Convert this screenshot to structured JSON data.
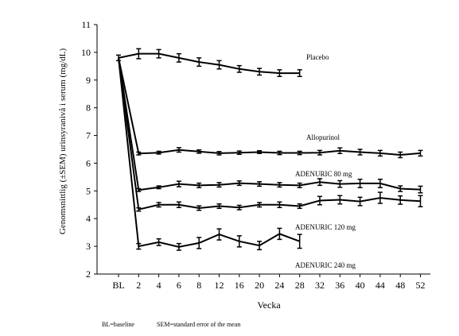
{
  "chart_data": {
    "type": "line",
    "xlabel": "Vecka",
    "ylabel": "Genomsnittlig (±SEM) urinsyranivå i serum (mg/dL)",
    "ylim": [
      2,
      11
    ],
    "yticks": [
      2,
      3,
      4,
      5,
      6,
      7,
      8,
      9,
      10,
      11
    ],
    "categories": [
      "BL",
      "2",
      "4",
      "6",
      "8",
      "12",
      "16",
      "20",
      "24",
      "28",
      "32",
      "36",
      "40",
      "44",
      "48",
      "52"
    ],
    "grid": false,
    "series": [
      {
        "name": "Placebo",
        "values": [
          9.8,
          9.95,
          9.95,
          9.8,
          9.65,
          9.55,
          9.4,
          9.3,
          9.25,
          9.25,
          null,
          null,
          null,
          null,
          null,
          null
        ],
        "sem": [
          0.1,
          0.18,
          0.15,
          0.15,
          0.15,
          0.15,
          0.12,
          0.12,
          0.12,
          0.12,
          null,
          null,
          null,
          null,
          null,
          null
        ]
      },
      {
        "name": "Allopurinol",
        "values": [
          9.8,
          6.35,
          6.38,
          6.48,
          6.42,
          6.36,
          6.38,
          6.4,
          6.37,
          6.37,
          6.38,
          6.45,
          6.4,
          6.36,
          6.3,
          6.36
        ],
        "sem": [
          0.1,
          0.05,
          0.05,
          0.08,
          0.06,
          0.06,
          0.06,
          0.05,
          0.06,
          0.06,
          0.08,
          0.1,
          0.1,
          0.1,
          0.1,
          0.1
        ]
      },
      {
        "name": "ADENURIC 80 mg",
        "values": [
          9.8,
          5.03,
          5.13,
          5.25,
          5.2,
          5.22,
          5.28,
          5.25,
          5.22,
          5.2,
          5.32,
          5.25,
          5.27,
          5.27,
          5.08,
          5.05
        ],
        "sem": [
          0.1,
          0.05,
          0.05,
          0.1,
          0.08,
          0.08,
          0.08,
          0.08,
          0.08,
          0.08,
          0.12,
          0.12,
          0.15,
          0.15,
          0.1,
          0.12
        ]
      },
      {
        "name": "ADENURIC 120 mg",
        "values": [
          9.8,
          4.33,
          4.5,
          4.5,
          4.38,
          4.45,
          4.4,
          4.5,
          4.5,
          4.45,
          4.65,
          4.68,
          4.62,
          4.75,
          4.67,
          4.63
        ],
        "sem": [
          0.1,
          0.06,
          0.08,
          0.1,
          0.08,
          0.08,
          0.08,
          0.08,
          0.1,
          0.08,
          0.15,
          0.15,
          0.15,
          0.2,
          0.15,
          0.2
        ]
      },
      {
        "name": "ADENURIC 240 mg",
        "values": [
          9.8,
          3.0,
          3.15,
          2.98,
          3.12,
          3.43,
          3.18,
          3.03,
          3.45,
          3.18,
          null,
          null,
          null,
          null,
          null,
          null
        ],
        "sem": [
          0.1,
          0.1,
          0.12,
          0.12,
          0.2,
          0.2,
          0.2,
          0.15,
          0.2,
          0.25,
          null,
          null,
          null,
          null,
          null,
          null
        ]
      }
    ],
    "footnote": {
      "baseline": "BL=baseline",
      "sem": "SEM=standard error of the mean"
    }
  }
}
